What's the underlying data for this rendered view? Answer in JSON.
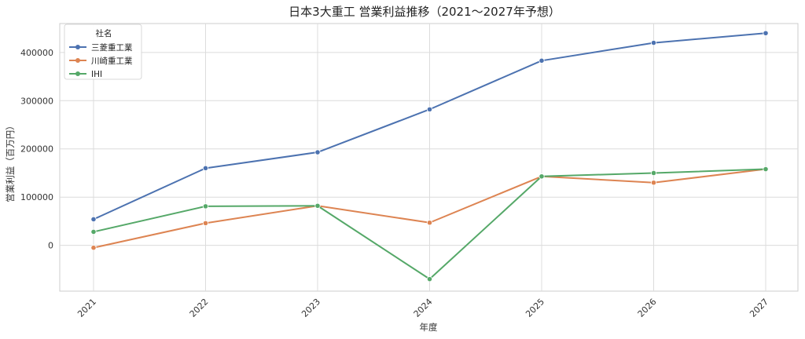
{
  "chart_data": {
    "type": "line",
    "title": "日本3大重工 営業利益推移（2021〜2027年予想）",
    "xlabel": "年度",
    "ylabel": "営業利益（百万円）",
    "x": [
      "2021",
      "2022",
      "2023",
      "2024",
      "2025",
      "2026",
      "2027"
    ],
    "y_ticks": [
      0,
      100000,
      200000,
      300000,
      400000
    ],
    "y_tick_labels": [
      "0",
      "100000",
      "200000",
      "300000",
      "400000"
    ],
    "ylim": [
      -95000,
      460000
    ],
    "grid": true,
    "legend": {
      "title": "社名",
      "placement": "top-left"
    },
    "series": [
      {
        "name": "三菱重工業",
        "color": "#4c72b0",
        "values": [
          54000,
          160000,
          193000,
          282000,
          383000,
          420000,
          440000
        ]
      },
      {
        "name": "川崎重工業",
        "color": "#dd8452",
        "values": [
          -5000,
          46000,
          82000,
          47000,
          143000,
          130000,
          158000
        ]
      },
      {
        "name": "IHI",
        "color": "#55a868",
        "values": [
          28000,
          81000,
          82000,
          -70000,
          143000,
          150000,
          158000
        ]
      }
    ]
  }
}
